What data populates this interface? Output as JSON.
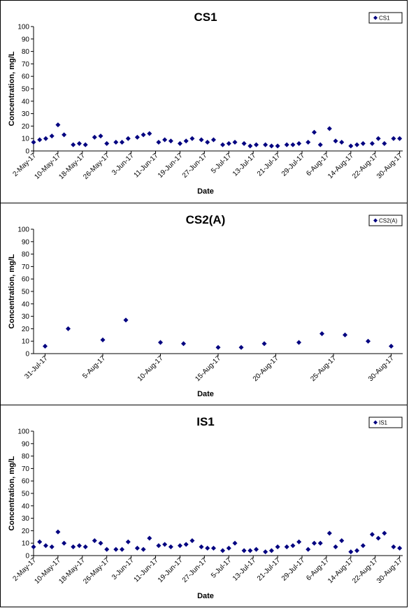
{
  "colors": {
    "marker": "#000080",
    "axis": "#000000",
    "frame": "#000000"
  },
  "chart_data": [
    {
      "type": "scatter",
      "title": "CS1",
      "xlabel": "Date",
      "ylabel": "Concentration, mg/L",
      "ylim": [
        0,
        100
      ],
      "yticks": [
        0,
        10,
        20,
        30,
        40,
        50,
        60,
        70,
        80,
        90,
        100
      ],
      "xlim": [
        "2017-05-02",
        "2017-08-31"
      ],
      "xticks": [
        {
          "date": "2017-05-02",
          "label": "2-May-17"
        },
        {
          "date": "2017-05-10",
          "label": "10-May-17"
        },
        {
          "date": "2017-05-18",
          "label": "18-May-17"
        },
        {
          "date": "2017-05-26",
          "label": "26-May-17"
        },
        {
          "date": "2017-06-03",
          "label": "3-Jun-17"
        },
        {
          "date": "2017-06-11",
          "label": "11-Jun-17"
        },
        {
          "date": "2017-06-19",
          "label": "19-Jun-17"
        },
        {
          "date": "2017-06-27",
          "label": "27-Jun-17"
        },
        {
          "date": "2017-07-05",
          "label": "5-Jul-17"
        },
        {
          "date": "2017-07-13",
          "label": "13-Jul-17"
        },
        {
          "date": "2017-07-21",
          "label": "21-Jul-17"
        },
        {
          "date": "2017-07-29",
          "label": "29-Jul-17"
        },
        {
          "date": "2017-08-06",
          "label": "6-Aug-17"
        },
        {
          "date": "2017-08-14",
          "label": "14-Aug-17"
        },
        {
          "date": "2017-08-22",
          "label": "22-Aug-17"
        },
        {
          "date": "2017-08-30",
          "label": "30-Aug-17"
        }
      ],
      "legend": "top-right",
      "grid": false,
      "series": [
        {
          "name": "CS1",
          "points": [
            [
              "2017-05-02",
              7
            ],
            [
              "2017-05-04",
              9
            ],
            [
              "2017-05-06",
              10
            ],
            [
              "2017-05-08",
              12
            ],
            [
              "2017-05-10",
              21
            ],
            [
              "2017-05-12",
              13
            ],
            [
              "2017-05-15",
              5
            ],
            [
              "2017-05-17",
              6
            ],
            [
              "2017-05-19",
              5
            ],
            [
              "2017-05-22",
              11
            ],
            [
              "2017-05-24",
              12
            ],
            [
              "2017-05-26",
              6
            ],
            [
              "2017-05-29",
              7
            ],
            [
              "2017-05-31",
              7
            ],
            [
              "2017-06-02",
              10
            ],
            [
              "2017-06-05",
              11
            ],
            [
              "2017-06-07",
              13
            ],
            [
              "2017-06-09",
              14
            ],
            [
              "2017-06-12",
              7
            ],
            [
              "2017-06-14",
              9
            ],
            [
              "2017-06-16",
              8
            ],
            [
              "2017-06-19",
              6
            ],
            [
              "2017-06-21",
              8
            ],
            [
              "2017-06-23",
              10
            ],
            [
              "2017-06-26",
              9
            ],
            [
              "2017-06-28",
              7
            ],
            [
              "2017-06-30",
              9
            ],
            [
              "2017-07-03",
              5
            ],
            [
              "2017-07-05",
              6
            ],
            [
              "2017-07-07",
              7
            ],
            [
              "2017-07-10",
              6
            ],
            [
              "2017-07-12",
              4
            ],
            [
              "2017-07-14",
              5
            ],
            [
              "2017-07-17",
              5
            ],
            [
              "2017-07-19",
              4
            ],
            [
              "2017-07-21",
              4
            ],
            [
              "2017-07-24",
              5
            ],
            [
              "2017-07-26",
              5
            ],
            [
              "2017-07-28",
              6
            ],
            [
              "2017-07-31",
              7
            ],
            [
              "2017-08-02",
              15
            ],
            [
              "2017-08-04",
              5
            ],
            [
              "2017-08-07",
              18
            ],
            [
              "2017-08-09",
              8
            ],
            [
              "2017-08-11",
              7
            ],
            [
              "2017-08-14",
              4
            ],
            [
              "2017-08-16",
              5
            ],
            [
              "2017-08-18",
              6
            ],
            [
              "2017-08-21",
              6
            ],
            [
              "2017-08-23",
              10
            ],
            [
              "2017-08-25",
              6
            ],
            [
              "2017-08-28",
              10
            ],
            [
              "2017-08-30",
              10
            ]
          ]
        }
      ]
    },
    {
      "type": "scatter",
      "title": "CS2(A)",
      "xlabel": "Date",
      "ylabel": "Concentration, mg/L",
      "ylim": [
        0,
        100
      ],
      "yticks": [
        0,
        10,
        20,
        30,
        40,
        50,
        60,
        70,
        80,
        90,
        100
      ],
      "xlim": [
        "2017-07-30",
        "2017-08-31"
      ],
      "xticks": [
        {
          "date": "2017-07-31",
          "label": "31-Jul-17"
        },
        {
          "date": "2017-08-05",
          "label": "5-Aug-17"
        },
        {
          "date": "2017-08-10",
          "label": "10-Aug-17"
        },
        {
          "date": "2017-08-15",
          "label": "15-Aug-17"
        },
        {
          "date": "2017-08-20",
          "label": "20-Aug-17"
        },
        {
          "date": "2017-08-25",
          "label": "25-Aug-17"
        },
        {
          "date": "2017-08-30",
          "label": "30-Aug-17"
        }
      ],
      "legend": "top-right",
      "grid": false,
      "series": [
        {
          "name": "CS2(A)",
          "points": [
            [
              "2017-07-31",
              6
            ],
            [
              "2017-08-02",
              20
            ],
            [
              "2017-08-05",
              11
            ],
            [
              "2017-08-07",
              27
            ],
            [
              "2017-08-10",
              9
            ],
            [
              "2017-08-12",
              8
            ],
            [
              "2017-08-15",
              5
            ],
            [
              "2017-08-17",
              5
            ],
            [
              "2017-08-19",
              8
            ],
            [
              "2017-08-22",
              9
            ],
            [
              "2017-08-24",
              16
            ],
            [
              "2017-08-26",
              15
            ],
            [
              "2017-08-28",
              10
            ],
            [
              "2017-08-30",
              6
            ]
          ]
        }
      ]
    },
    {
      "type": "scatter",
      "title": "IS1",
      "xlabel": "Date",
      "ylabel": "Concentration, mg/L",
      "ylim": [
        0,
        100
      ],
      "yticks": [
        0,
        10,
        20,
        30,
        40,
        50,
        60,
        70,
        80,
        90,
        100
      ],
      "xlim": [
        "2017-05-02",
        "2017-08-31"
      ],
      "xticks": [
        {
          "date": "2017-05-02",
          "label": "2-May-17"
        },
        {
          "date": "2017-05-10",
          "label": "10-May-17"
        },
        {
          "date": "2017-05-18",
          "label": "18-May-17"
        },
        {
          "date": "2017-05-26",
          "label": "26-May-17"
        },
        {
          "date": "2017-06-03",
          "label": "3-Jun-17"
        },
        {
          "date": "2017-06-11",
          "label": "11-Jun-17"
        },
        {
          "date": "2017-06-19",
          "label": "19-Jun-17"
        },
        {
          "date": "2017-06-27",
          "label": "27-Jun-17"
        },
        {
          "date": "2017-07-05",
          "label": "5-Jul-17"
        },
        {
          "date": "2017-07-13",
          "label": "13-Jul-17"
        },
        {
          "date": "2017-07-21",
          "label": "21-Jul-17"
        },
        {
          "date": "2017-07-29",
          "label": "29-Jul-17"
        },
        {
          "date": "2017-08-06",
          "label": "6-Aug-17"
        },
        {
          "date": "2017-08-14",
          "label": "14-Aug-17"
        },
        {
          "date": "2017-08-22",
          "label": "22-Aug-17"
        },
        {
          "date": "2017-08-30",
          "label": "30-Aug-17"
        }
      ],
      "legend": "top-right",
      "grid": false,
      "series": [
        {
          "name": "IS1",
          "points": [
            [
              "2017-05-02",
              7
            ],
            [
              "2017-05-04",
              11
            ],
            [
              "2017-05-06",
              8
            ],
            [
              "2017-05-08",
              7
            ],
            [
              "2017-05-10",
              19
            ],
            [
              "2017-05-12",
              10
            ],
            [
              "2017-05-15",
              7
            ],
            [
              "2017-05-17",
              8
            ],
            [
              "2017-05-19",
              7
            ],
            [
              "2017-05-22",
              12
            ],
            [
              "2017-05-24",
              10
            ],
            [
              "2017-05-26",
              5
            ],
            [
              "2017-05-29",
              5
            ],
            [
              "2017-05-31",
              5
            ],
            [
              "2017-06-02",
              11
            ],
            [
              "2017-06-05",
              6
            ],
            [
              "2017-06-07",
              5
            ],
            [
              "2017-06-09",
              14
            ],
            [
              "2017-06-12",
              8
            ],
            [
              "2017-06-14",
              9
            ],
            [
              "2017-06-16",
              7
            ],
            [
              "2017-06-19",
              8
            ],
            [
              "2017-06-21",
              9
            ],
            [
              "2017-06-23",
              12
            ],
            [
              "2017-06-26",
              7
            ],
            [
              "2017-06-28",
              6
            ],
            [
              "2017-06-30",
              6
            ],
            [
              "2017-07-03",
              4
            ],
            [
              "2017-07-05",
              6
            ],
            [
              "2017-07-07",
              10
            ],
            [
              "2017-07-10",
              4
            ],
            [
              "2017-07-12",
              4
            ],
            [
              "2017-07-14",
              5
            ],
            [
              "2017-07-17",
              3
            ],
            [
              "2017-07-19",
              4
            ],
            [
              "2017-07-21",
              7
            ],
            [
              "2017-07-24",
              7
            ],
            [
              "2017-07-26",
              8
            ],
            [
              "2017-07-28",
              11
            ],
            [
              "2017-07-31",
              5
            ],
            [
              "2017-08-02",
              10
            ],
            [
              "2017-08-04",
              10
            ],
            [
              "2017-08-07",
              18
            ],
            [
              "2017-08-09",
              7
            ],
            [
              "2017-08-11",
              12
            ],
            [
              "2017-08-14",
              3
            ],
            [
              "2017-08-16",
              4
            ],
            [
              "2017-08-18",
              8
            ],
            [
              "2017-08-21",
              17
            ],
            [
              "2017-08-23",
              14
            ],
            [
              "2017-08-25",
              18
            ],
            [
              "2017-08-28",
              7
            ],
            [
              "2017-08-30",
              6
            ]
          ]
        }
      ]
    }
  ]
}
